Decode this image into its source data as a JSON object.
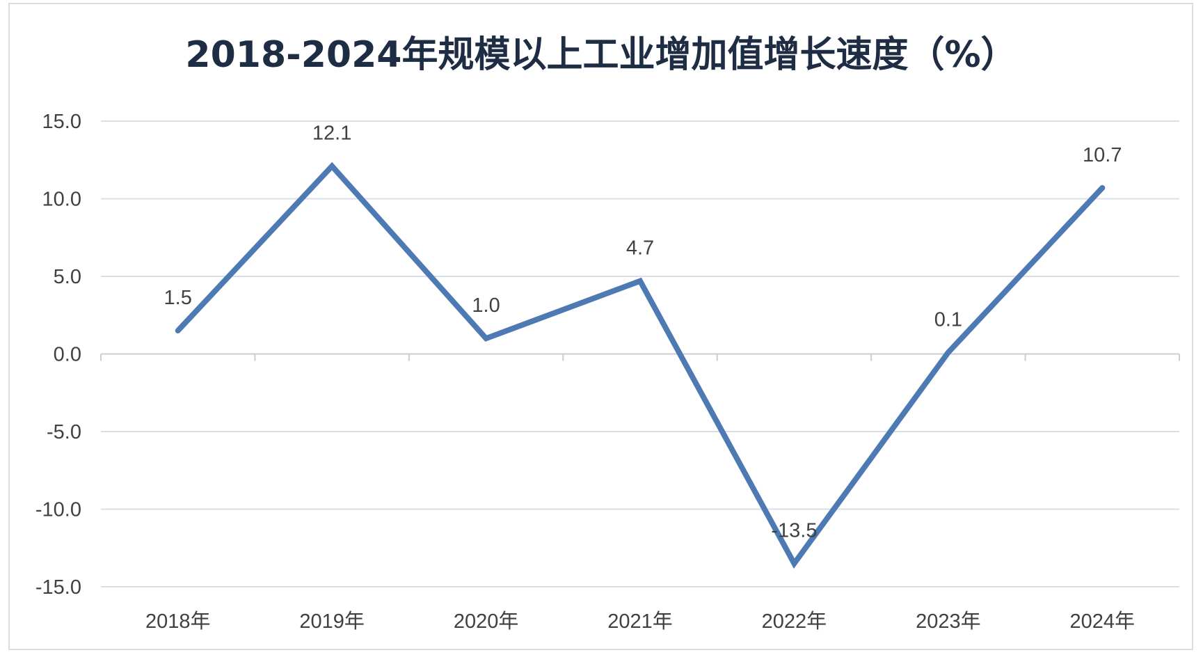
{
  "chart_data": {
    "type": "line",
    "title": "2018-2024年规模以上工业增加值增长速度（%）",
    "categories": [
      "2018年",
      "2019年",
      "2020年",
      "2021年",
      "2022年",
      "2023年",
      "2024年"
    ],
    "series": [
      {
        "values": [
          1.5,
          12.1,
          1.0,
          4.7,
          -13.5,
          0.1,
          10.7
        ]
      }
    ],
    "data_labels": [
      "1.5",
      "12.1",
      "1.0",
      "4.7",
      "-13.5",
      "0.1",
      "10.7"
    ],
    "y_ticks": [
      "15.0",
      "10.0",
      "5.0",
      "0.0",
      "-5.0",
      "-10.0",
      "-15.0"
    ],
    "ylim": [
      -15,
      15
    ],
    "grid": true,
    "legend": "none",
    "line_color": "#4e7ab4",
    "grid_color": "#d9dfe8"
  }
}
